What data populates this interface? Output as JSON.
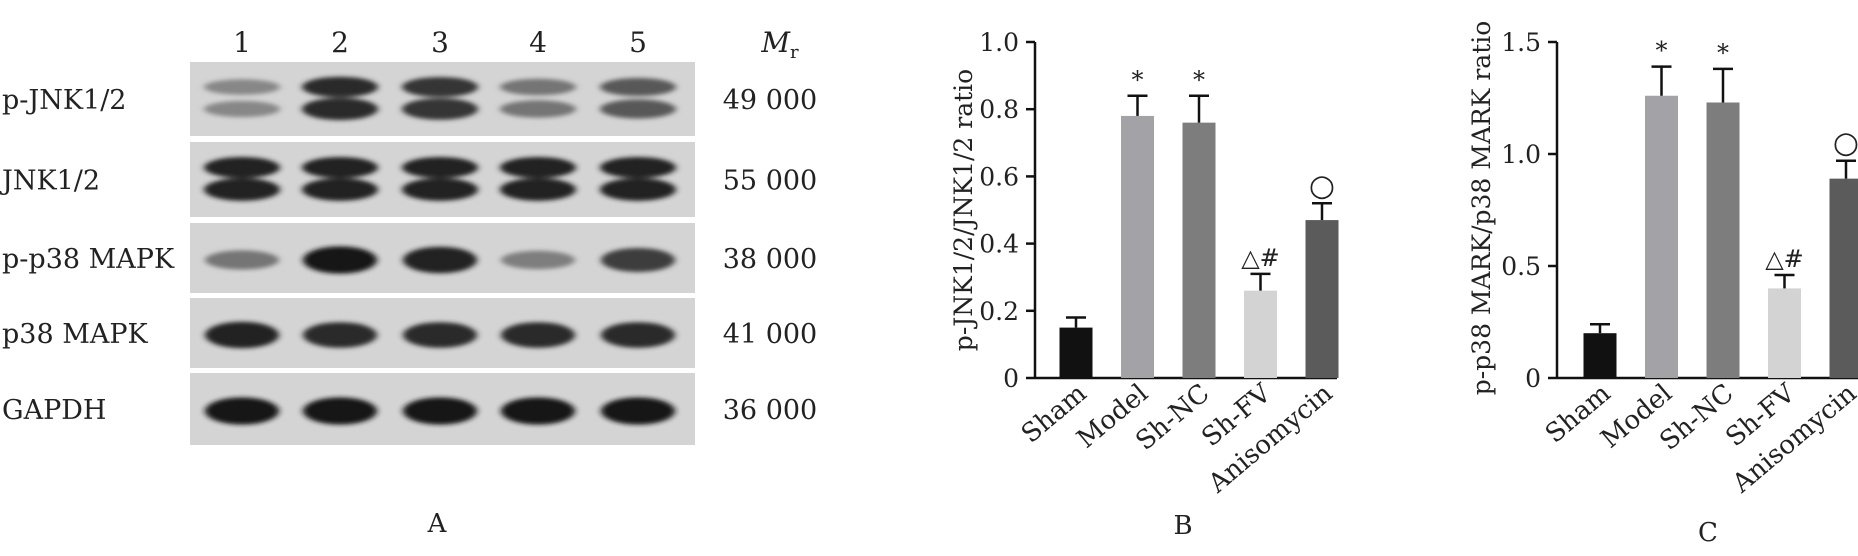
{
  "panel_a": {
    "letter": "A",
    "lanes": [
      "1",
      "2",
      "3",
      "4",
      "5"
    ],
    "mr_label_main": "M",
    "mr_label_sub": "r",
    "blots": [
      {
        "name": "p-JNK1/2",
        "mr": "49 000",
        "doublet": true,
        "intensity": [
          0.35,
          0.85,
          0.8,
          0.45,
          0.6
        ]
      },
      {
        "name": "JNK1/2",
        "mr": "55 000",
        "doublet": true,
        "intensity": [
          0.9,
          0.9,
          0.9,
          0.9,
          0.9
        ]
      },
      {
        "name": "p-p38 MAPK",
        "mr": "38 000",
        "doublet": false,
        "intensity": [
          0.45,
          0.95,
          0.9,
          0.4,
          0.75
        ]
      },
      {
        "name": "p38 MAPK",
        "mr": "41 000",
        "doublet": false,
        "intensity": [
          0.9,
          0.85,
          0.85,
          0.85,
          0.85
        ]
      },
      {
        "name": "GAPDH",
        "mr": "36 000",
        "doublet": false,
        "intensity": [
          0.95,
          0.95,
          0.95,
          0.95,
          0.95
        ]
      }
    ]
  },
  "chart_data": [
    {
      "type": "bar",
      "panel": "B",
      "categories": [
        "Sham",
        "Model",
        "Sh-NC",
        "Sh-FV",
        "Anisomycin"
      ],
      "values": [
        0.15,
        0.78,
        0.76,
        0.26,
        0.47
      ],
      "errors": [
        0.03,
        0.06,
        0.08,
        0.05,
        0.05
      ],
      "annotations": [
        "",
        "*",
        "*",
        "△#",
        "○"
      ],
      "colors": [
        "#111111",
        "#a3a3a7",
        "#7d7d7d",
        "#d3d3d3",
        "#5b5b5b"
      ],
      "title": "",
      "xlabel": "",
      "ylabel": "p-JNK1/2/JNK1/2 ratio",
      "ylim": [
        0,
        1.0
      ],
      "yticks": [
        "0",
        "0.2",
        "0.4",
        "0.6",
        "0.8",
        "1.0"
      ],
      "grid": false
    },
    {
      "type": "bar",
      "panel": "C",
      "categories": [
        "Sham",
        "Model",
        "Sh-NC",
        "Sh-FV",
        "Anisomycin"
      ],
      "values": [
        0.2,
        1.26,
        1.23,
        0.4,
        0.89
      ],
      "errors": [
        0.04,
        0.13,
        0.15,
        0.06,
        0.08
      ],
      "annotations": [
        "",
        "*",
        "*",
        "△#",
        "○"
      ],
      "colors": [
        "#111111",
        "#a3a3a7",
        "#7d7d7d",
        "#d3d3d3",
        "#5b5b5b"
      ],
      "title": "",
      "xlabel": "",
      "ylabel": "p-p38 MARK/p38 MARK ratio",
      "ylim": [
        0,
        1.5
      ],
      "yticks": [
        "0",
        "0.5",
        "1.0",
        "1.5"
      ],
      "grid": false
    }
  ]
}
